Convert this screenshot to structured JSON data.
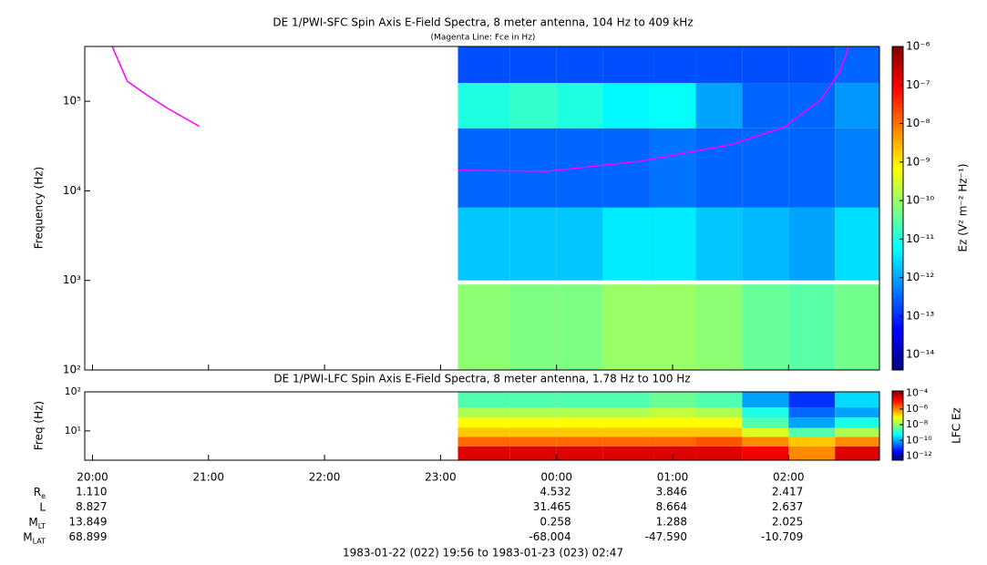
{
  "chart_data": [
    {
      "type": "heatmap",
      "title": "DE 1/PWI-SFC  Spin Axis E-Field Spectra, 8 meter antenna, 104 Hz to 409 kHz",
      "subtitle": "(Magenta Line: Fce in Hz)",
      "ylabel": "Frequency (Hz)",
      "xlim": [
        19.9333,
        26.7833
      ],
      "ylim": [
        100,
        409000
      ],
      "log_y": true,
      "yticks": [
        {
          "value": 100,
          "label": "10²"
        },
        {
          "value": 1000,
          "label": "10³"
        },
        {
          "value": 10000,
          "label": "10⁴"
        },
        {
          "value": 100000,
          "label": "10⁵"
        }
      ],
      "x_edges": [
        23.15,
        23.6,
        24.0,
        24.4,
        24.8,
        25.2,
        25.6,
        26.0,
        26.4,
        26.7833
      ],
      "y_edges": [
        100,
        900,
        1000,
        6500,
        50000,
        160000,
        409000
      ],
      "z": [
        [
          8e-11,
          6e-11,
          6e-11,
          1e-10,
          1e-10,
          8e-11,
          4e-11,
          3e-11,
          5e-11
        ],
        [
          null,
          null,
          null,
          null,
          null,
          null,
          null,
          null,
          null
        ],
        [
          2e-12,
          2e-12,
          2e-12,
          4e-12,
          4e-12,
          2e-12,
          1.5e-12,
          1e-12,
          3e-12
        ],
        [
          3e-13,
          3e-13,
          3e-13,
          3e-13,
          4e-13,
          3e-13,
          3e-13,
          3e-13,
          5e-13
        ],
        [
          1e-11,
          1.5e-11,
          1e-11,
          5e-12,
          6e-12,
          1e-12,
          3e-13,
          3e-13,
          8e-13
        ],
        [
          2e-13,
          2e-13,
          2e-13,
          2e-13,
          2e-13,
          2e-13,
          2e-13,
          2e-13,
          3e-13
        ]
      ],
      "overlay": {
        "color": "#ff00ff",
        "x": [
          20.17,
          20.3,
          20.47,
          20.65,
          20.92,
          21.5,
          23.15,
          23.92,
          24.71,
          25.5,
          25.97,
          26.28,
          26.44,
          26.52
        ],
        "values": [
          409000,
          167000,
          117000,
          83000,
          52500,
          null,
          17000,
          16500,
          21300,
          32700,
          51800,
          105000,
          213000,
          409000
        ]
      },
      "colorbar": {
        "label": "Ez (V² m⁻² Hz⁻¹)",
        "clim": [
          4e-15,
          1e-06
        ],
        "log": true,
        "ticks": [
          {
            "value": 1e-06,
            "label": "10⁻⁶"
          },
          {
            "value": 1e-07,
            "label": "10⁻⁷"
          },
          {
            "value": 1e-08,
            "label": "10⁻⁸"
          },
          {
            "value": 1e-09,
            "label": "10⁻⁹"
          },
          {
            "value": 1e-10,
            "label": "10⁻¹⁰"
          },
          {
            "value": 1e-11,
            "label": "10⁻¹¹"
          },
          {
            "value": 1e-12,
            "label": "10⁻¹²"
          },
          {
            "value": 1e-13,
            "label": "10⁻¹³"
          },
          {
            "value": 1e-14,
            "label": "10⁻¹⁴"
          }
        ]
      }
    },
    {
      "type": "heatmap",
      "title": "DE 1/PWI-LFC  Spin Axis E-Field Spectra, 8 meter antenna, 1.78 Hz to 100 Hz",
      "ylabel": "Freq (Hz)",
      "xlim": [
        19.9333,
        26.7833
      ],
      "xticks": [
        {
          "value": 20,
          "label": "20:00"
        },
        {
          "value": 21,
          "label": "21:00"
        },
        {
          "value": 22,
          "label": "22:00"
        },
        {
          "value": 23,
          "label": "23:00"
        },
        {
          "value": 24,
          "label": "00:00"
        },
        {
          "value": 25,
          "label": "01:00"
        },
        {
          "value": 26,
          "label": "02:00"
        }
      ],
      "ylim": [
        1.78,
        100
      ],
      "log_y": true,
      "yticks": [
        {
          "value": 10,
          "label": "10¹"
        },
        {
          "value": 100,
          "label": "10²"
        }
      ],
      "x_edges": [
        23.15,
        23.6,
        24.0,
        24.4,
        24.8,
        25.2,
        25.6,
        26.0,
        26.4,
        26.7833
      ],
      "y_edges": [
        1.78,
        4,
        7,
        12,
        22,
        40,
        100
      ],
      "z": [
        [
          3e-05,
          3e-05,
          3e-05,
          3e-05,
          3e-05,
          3e-05,
          2e-05,
          1e-06,
          3e-05
        ],
        [
          2e-06,
          2e-06,
          2e-06,
          2e-06,
          2e-06,
          3e-06,
          1e-06,
          3e-07,
          1e-06
        ],
        [
          3e-07,
          3e-07,
          3e-07,
          3e-07,
          3e-07,
          3e-07,
          5e-08,
          3e-09,
          2e-08
        ],
        [
          1e-07,
          1e-07,
          1e-07,
          1e-07,
          1e-07,
          1e-07,
          3e-09,
          1e-10,
          1e-09
        ],
        [
          2e-08,
          2e-08,
          2e-08,
          2e-08,
          3e-08,
          2e-08,
          1e-09,
          3e-11,
          1e-10
        ],
        [
          3e-09,
          3e-09,
          3e-09,
          3e-09,
          5e-09,
          3e-09,
          1e-10,
          1e-11,
          3e-10
        ]
      ],
      "colorbar": {
        "label": "LFC Ez",
        "clim": [
          3e-13,
          0.0002
        ],
        "log": true,
        "ticks": [
          {
            "value": 0.0001,
            "label": "10⁻⁴"
          },
          {
            "value": 1e-06,
            "label": "10⁻⁶"
          },
          {
            "value": 1e-08,
            "label": "10⁻⁸"
          },
          {
            "value": 1e-10,
            "label": "10⁻¹⁰"
          },
          {
            "value": 1e-12,
            "label": "10⁻¹²"
          }
        ]
      }
    }
  ],
  "ephemeris": {
    "rows": [
      {
        "label": "R",
        "sub": "e",
        "values": [
          "1.110",
          null,
          null,
          null,
          "4.532",
          "3.846",
          "2.417"
        ]
      },
      {
        "label": "L",
        "sub": null,
        "values": [
          "8.827",
          null,
          null,
          null,
          "31.465",
          "8.664",
          "2.637"
        ]
      },
      {
        "label": "M",
        "sub": "LT",
        "values": [
          "13.849",
          null,
          null,
          null,
          "0.258",
          "1.288",
          "2.025"
        ]
      },
      {
        "label": "M",
        "sub": "LAT",
        "values": [
          "68.899",
          null,
          null,
          null,
          "-68.004",
          "-47.590",
          "-10.709"
        ]
      }
    ]
  },
  "footer": "1983-01-22 (022) 19:56 to 1983-01-23 (023) 02:47"
}
